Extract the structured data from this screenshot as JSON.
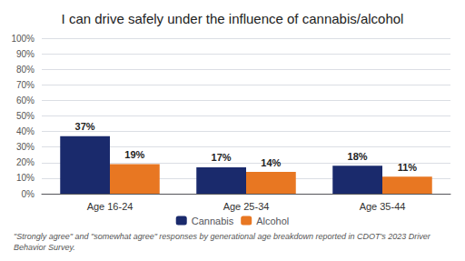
{
  "chart_data": {
    "type": "bar",
    "title": "I can drive safely under the influence of cannabis/alcohol",
    "annotations": [
      "\"Strongly agree\" and \"somewhat agree\" responses by generational age breakdown reported in CDOT's 2023 Driver Behavior Survey."
    ],
    "categories": [
      "Age 16-24",
      "Age 25-34",
      "Age 35-44"
    ],
    "series": [
      {
        "name": "Cannabis",
        "color": "#1a2a6c",
        "values": [
          37,
          17,
          18
        ],
        "value_labels": [
          "37%",
          "17%",
          "18%"
        ]
      },
      {
        "name": "Alcohol",
        "color": "#e87722",
        "values": [
          19,
          14,
          11
        ],
        "value_labels": [
          "19%",
          "14%",
          "11%"
        ]
      }
    ],
    "ylim": [
      0,
      100
    ],
    "yticks": [
      {
        "value": 0,
        "label": "0%"
      },
      {
        "value": 10,
        "label": "10%"
      },
      {
        "value": 20,
        "label": "20%"
      },
      {
        "value": 30,
        "label": "30%"
      },
      {
        "value": 40,
        "label": "40%"
      },
      {
        "value": 50,
        "label": "50%"
      },
      {
        "value": 60,
        "label": "60%"
      },
      {
        "value": 70,
        "label": "70%"
      },
      {
        "value": 80,
        "label": "80%"
      },
      {
        "value": 90,
        "label": "90%"
      },
      {
        "value": 100,
        "label": "100%"
      }
    ],
    "grid": true,
    "legend": "bottom",
    "data_labels": true
  }
}
